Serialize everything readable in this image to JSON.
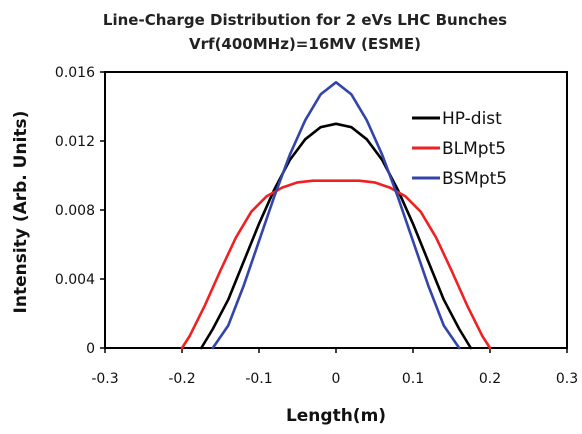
{
  "chart_data": {
    "type": "line",
    "title": "Line-Charge Distribution for 2 eVs LHC Bunches",
    "subtitle": "Vrf(400MHz)=16MV (ESME)",
    "xlabel": "Length(m)",
    "ylabel": "Intensity (Arb. Units)",
    "xlim": [
      -0.3,
      0.3
    ],
    "ylim": [
      0,
      0.016
    ],
    "xticks": [
      "-0.3",
      "-0.2",
      "-0.1",
      "0",
      "0.1",
      "0.2",
      "0.3"
    ],
    "yticks": [
      "0",
      "0.004",
      "0.008",
      "0.012",
      "0.016"
    ],
    "grid": false,
    "legend_position": "top-right",
    "series": [
      {
        "name": "HP-dist",
        "color": "#000000",
        "x": [
          -0.175,
          -0.16,
          -0.14,
          -0.12,
          -0.1,
          -0.08,
          -0.06,
          -0.04,
          -0.02,
          0,
          0.02,
          0.04,
          0.06,
          0.08,
          0.1,
          0.12,
          0.14,
          0.16,
          0.175
        ],
        "y": [
          0,
          0.0011,
          0.0028,
          0.005,
          0.0072,
          0.0092,
          0.0109,
          0.0121,
          0.0128,
          0.013,
          0.0128,
          0.0121,
          0.0109,
          0.0092,
          0.0072,
          0.005,
          0.0028,
          0.0011,
          0
        ]
      },
      {
        "name": "BLMpt5",
        "color": "#ee2222",
        "x": [
          -0.2,
          -0.19,
          -0.17,
          -0.15,
          -0.13,
          -0.11,
          -0.09,
          -0.07,
          -0.05,
          -0.03,
          -0.01,
          0,
          0.01,
          0.03,
          0.05,
          0.07,
          0.09,
          0.11,
          0.13,
          0.15,
          0.17,
          0.19,
          0.2
        ],
        "y": [
          0,
          0.0007,
          0.0025,
          0.0045,
          0.0064,
          0.0079,
          0.0088,
          0.0093,
          0.0096,
          0.0097,
          0.0097,
          0.0097,
          0.0097,
          0.0097,
          0.0096,
          0.0093,
          0.0088,
          0.0079,
          0.0064,
          0.0045,
          0.0025,
          0.0007,
          0
        ]
      },
      {
        "name": "BSMpt5",
        "color": "#3344aa",
        "x": [
          -0.16,
          -0.14,
          -0.12,
          -0.1,
          -0.08,
          -0.06,
          -0.04,
          -0.02,
          0,
          0.02,
          0.04,
          0.06,
          0.08,
          0.1,
          0.12,
          0.14,
          0.16
        ],
        "y": [
          0,
          0.0013,
          0.0036,
          0.0062,
          0.0088,
          0.0112,
          0.0132,
          0.0147,
          0.0154,
          0.0147,
          0.0132,
          0.0112,
          0.0088,
          0.0062,
          0.0036,
          0.0013,
          0
        ]
      }
    ]
  }
}
